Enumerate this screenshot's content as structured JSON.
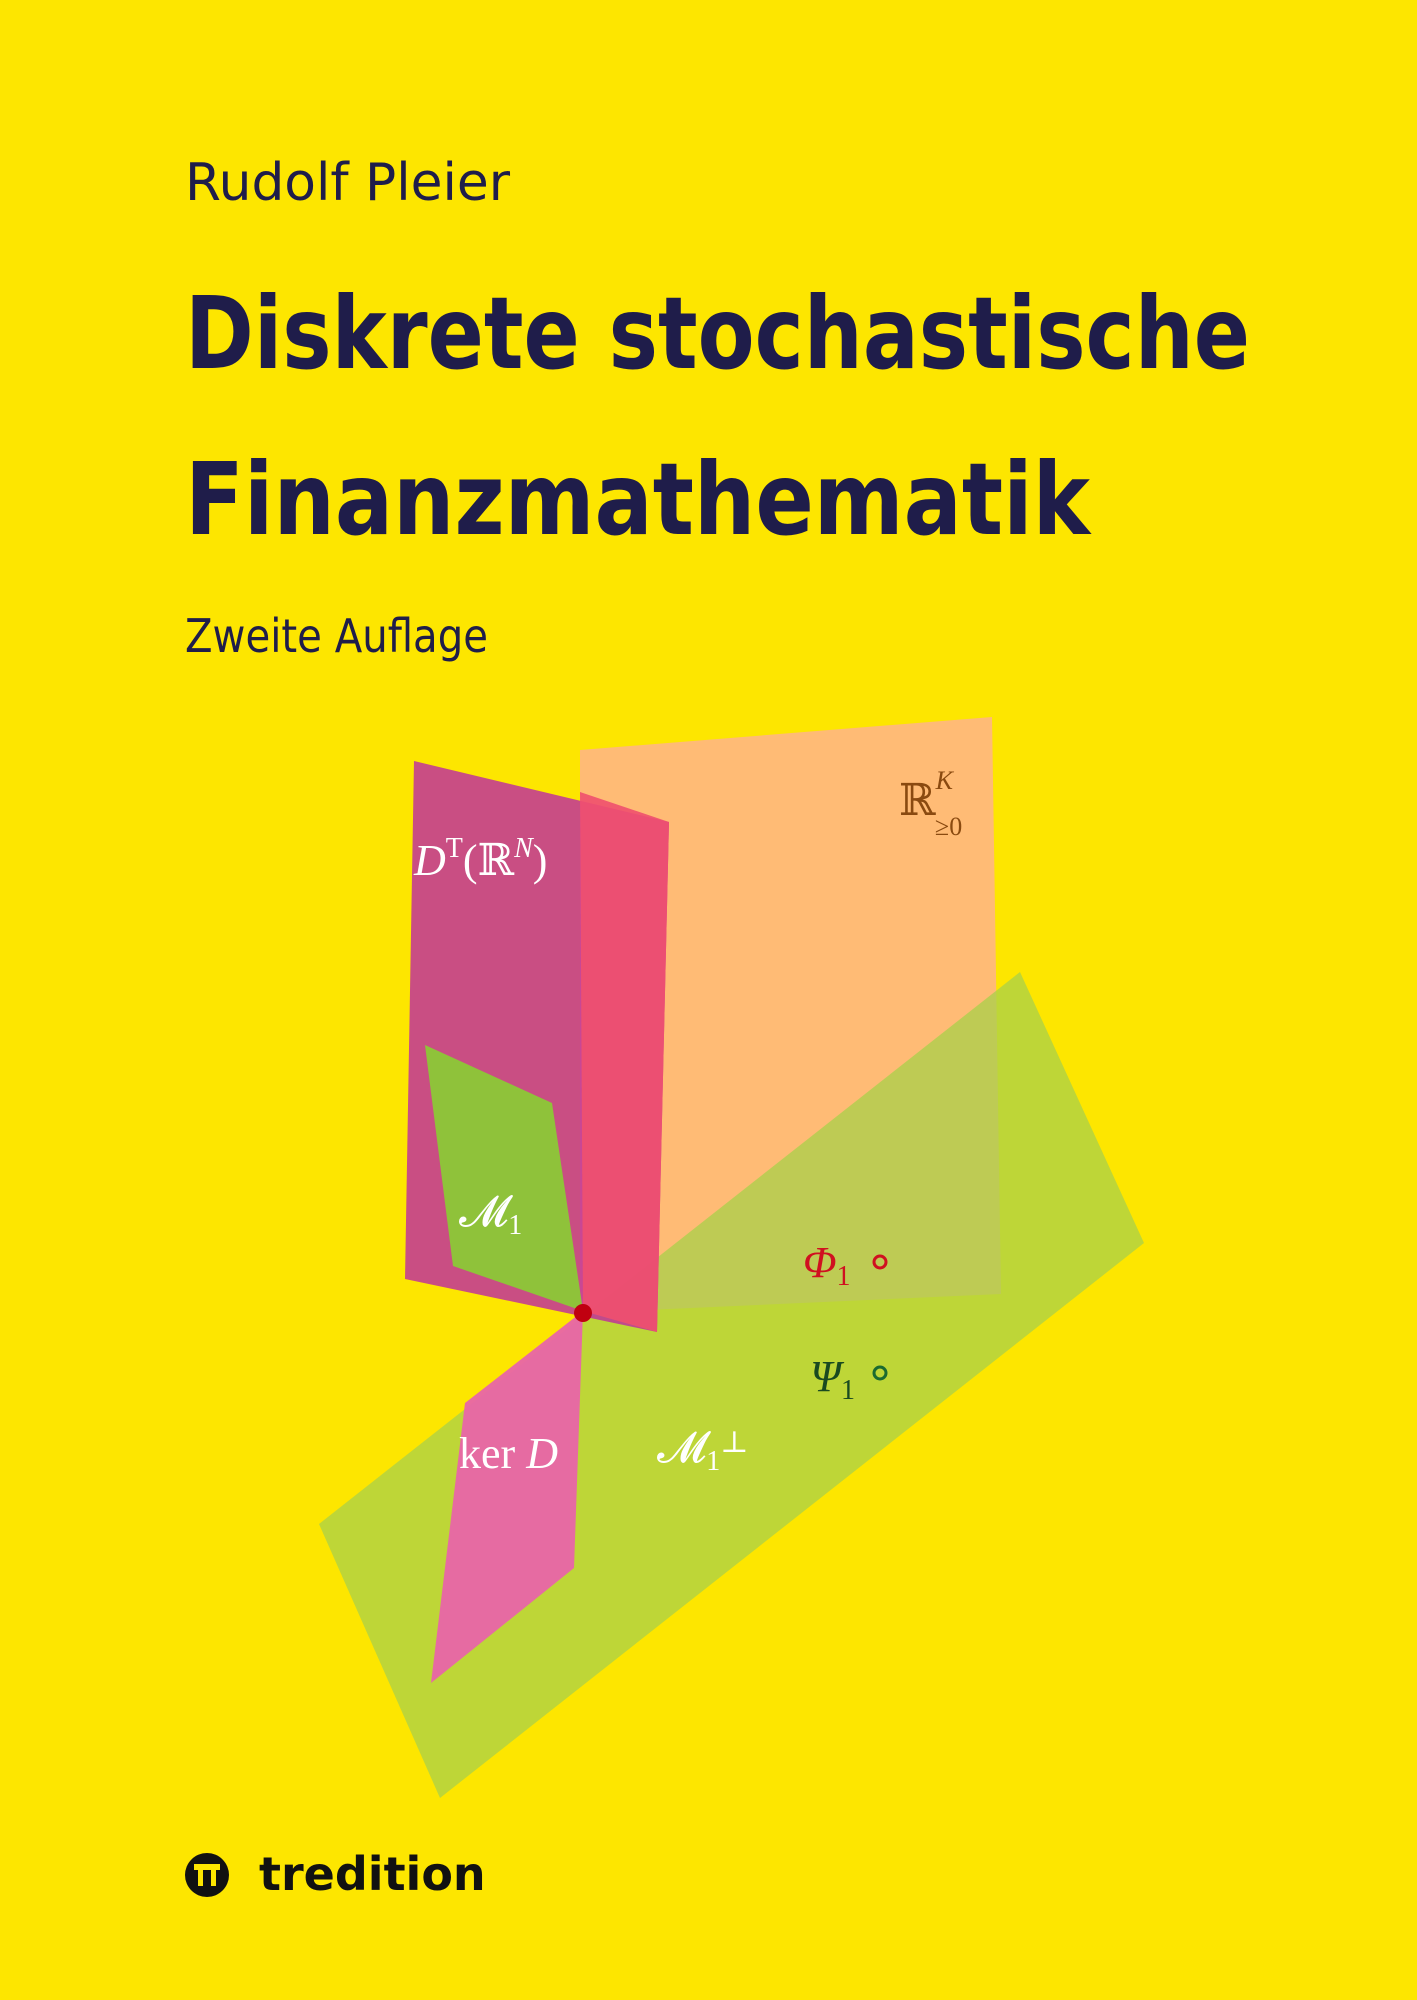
{
  "author": "Rudolf Pleier",
  "title": [
    "Diskrete stochastische",
    "Finanzmathematik"
  ],
  "edition": "Zweite Auflage",
  "publisher": "tredition",
  "diagram_labels": {
    "cone": [
      "ℝ",
      "K",
      "≥0"
    ],
    "image": [
      "D",
      "T",
      "(ℝ",
      "N",
      ")"
    ],
    "m1": [
      "𝓜",
      "1"
    ],
    "phi": [
      "Φ",
      "1"
    ],
    "psi": [
      "Ψ",
      "1"
    ],
    "kernel": [
      "ker ",
      "D"
    ],
    "m1perp": [
      "𝓜",
      "1",
      "⊥"
    ]
  }
}
